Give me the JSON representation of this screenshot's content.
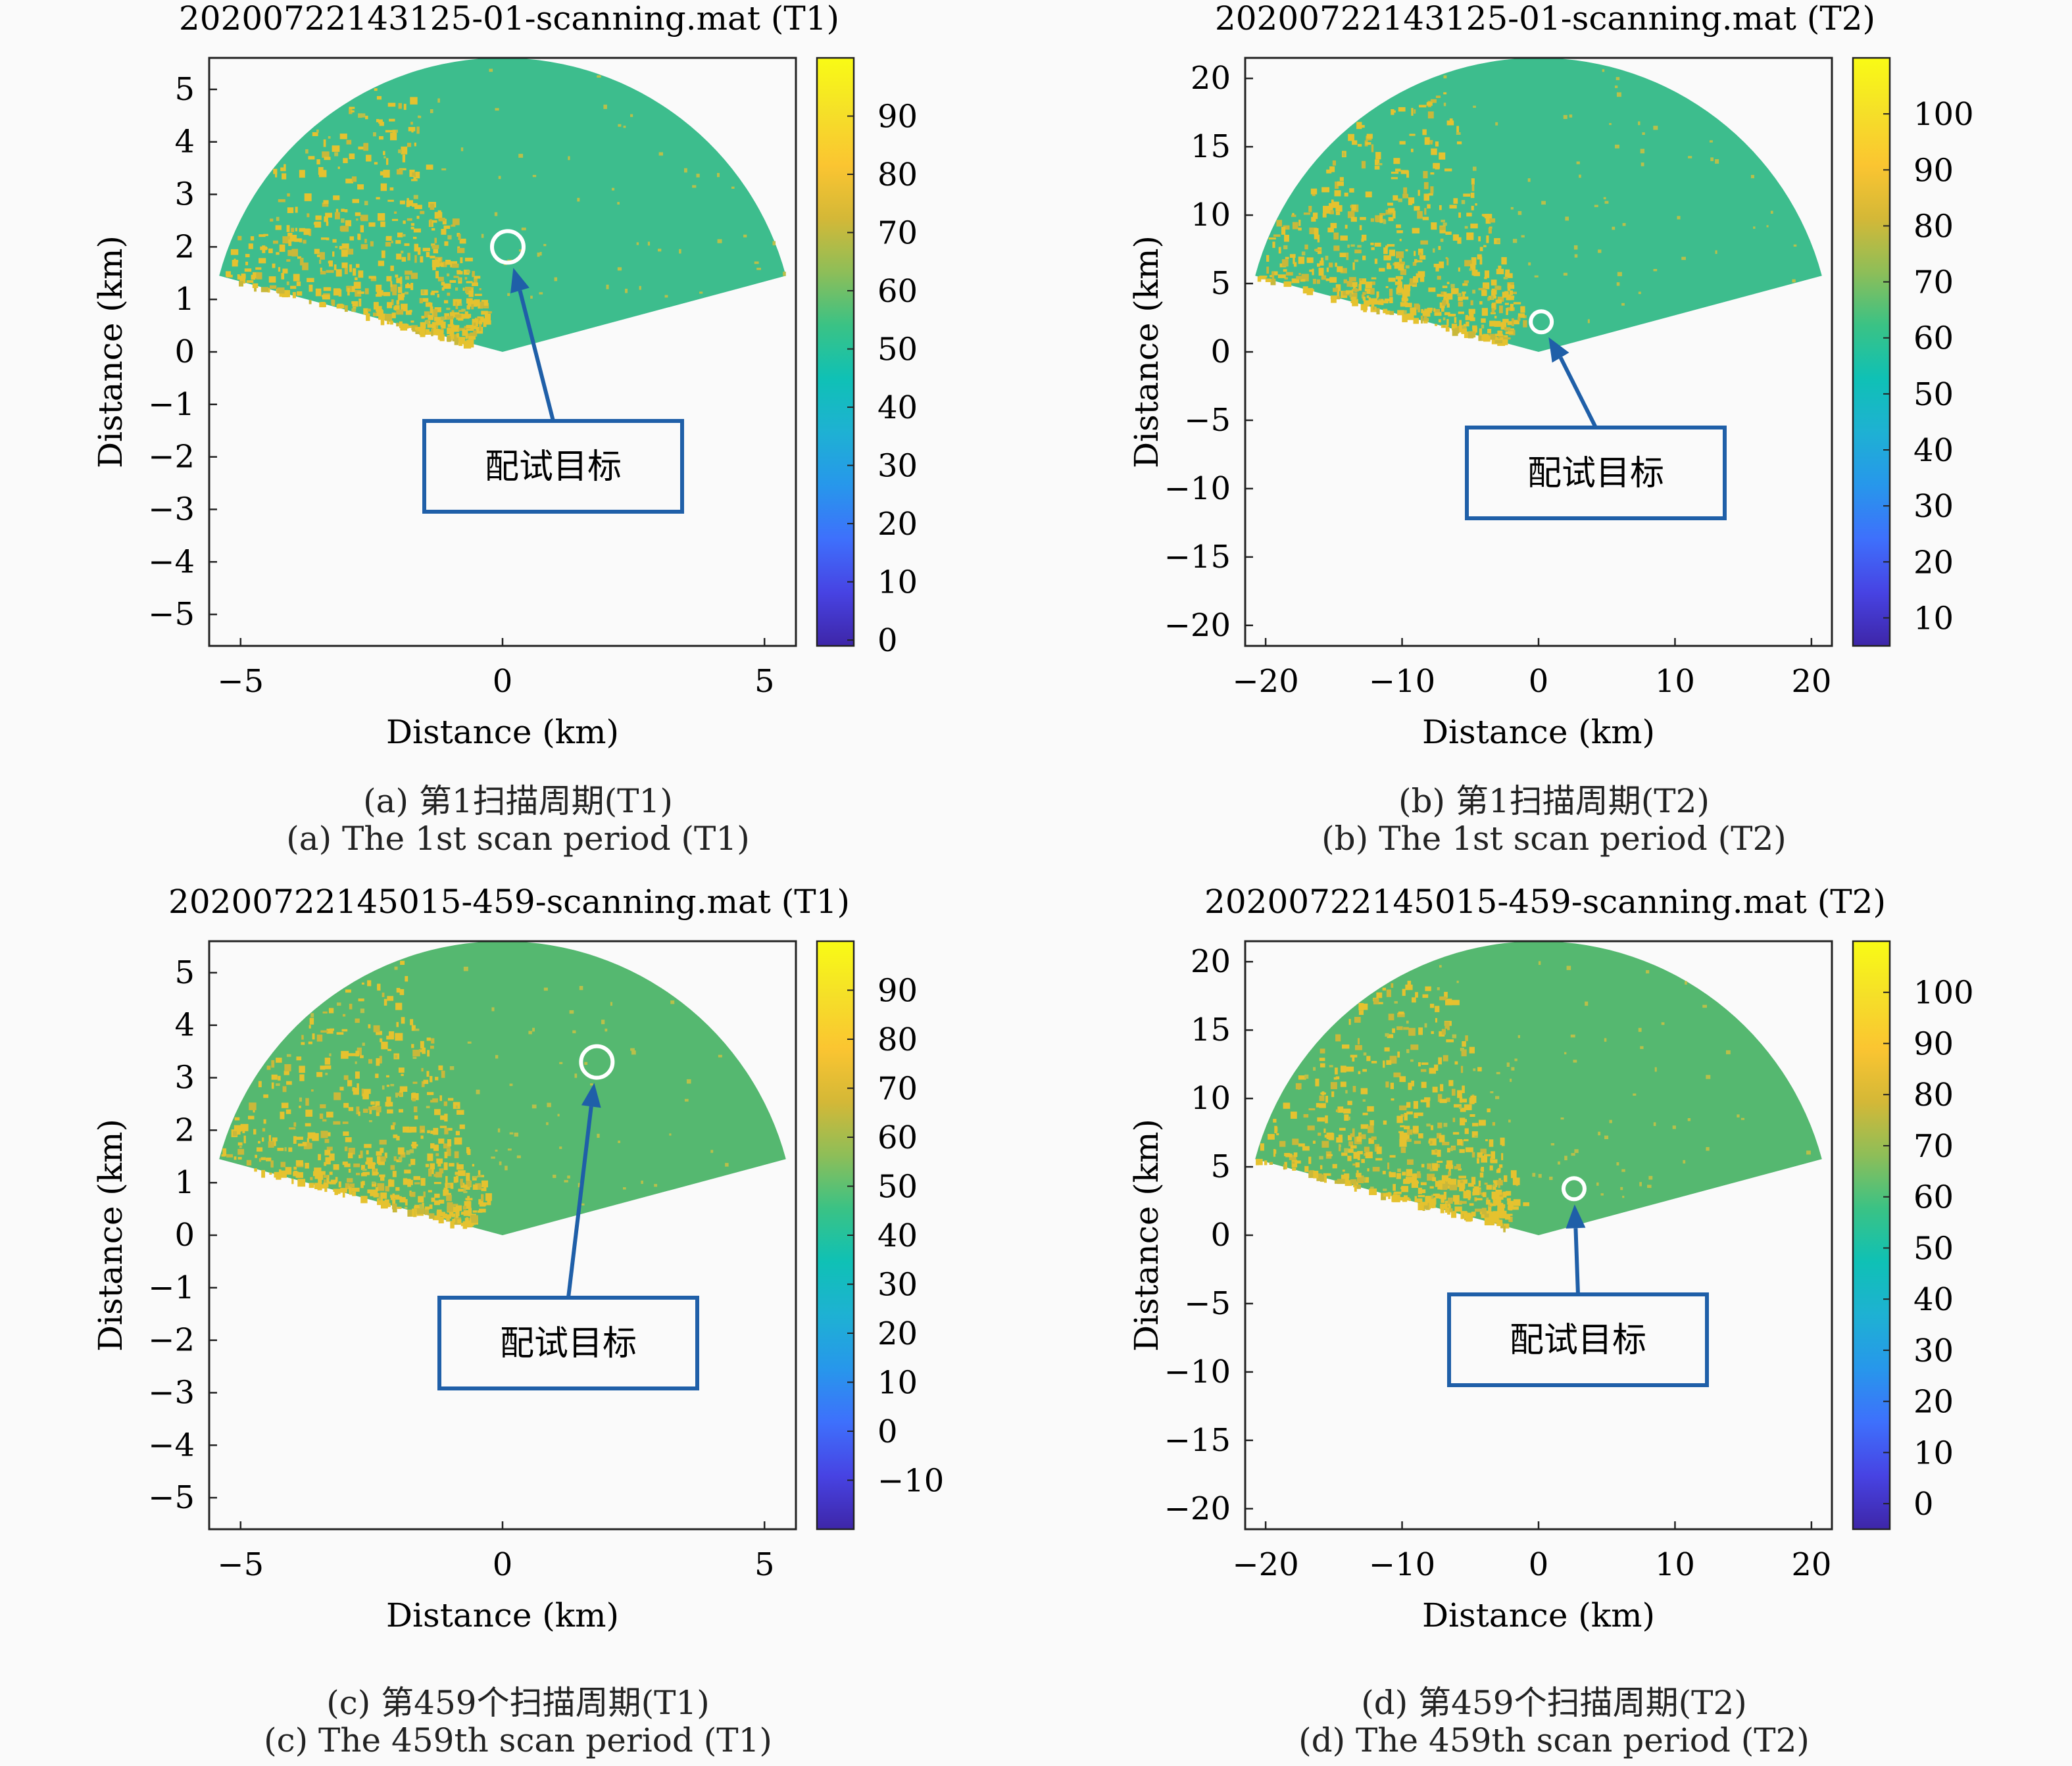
{
  "colors": {
    "background": "#fafafa",
    "sea": "#3dbd8d",
    "sea_dark": "#55b870",
    "clutter": "#e5c22f",
    "target_ring": "#ffffff",
    "annotation": "#1f5fa8"
  },
  "chart_data": [
    {
      "type": "heatmap",
      "id": "a",
      "title": "20200722143125-01-scanning.mat (T1)",
      "xlabel": "Distance (km)",
      "ylabel": "Distance (km)",
      "xlim": [
        -5.6,
        5.6
      ],
      "ylim": [
        -5.6,
        5.6
      ],
      "xticks": [
        -5,
        0,
        5
      ],
      "yticks": [
        5,
        4,
        3,
        2,
        1,
        0,
        -1,
        -2,
        -3,
        -4,
        -5
      ],
      "max_range": 5.6,
      "sector_deg": [
        15,
        165
      ],
      "colorbar": {
        "ticks": [
          90,
          80,
          70,
          60,
          50,
          40,
          30,
          20,
          10,
          0
        ],
        "min": -1,
        "max": 100
      },
      "target": {
        "x": 0.1,
        "y": 2.0
      },
      "annotation": "配试目标",
      "caption_cn": "(a) 第1扫描周期(T1)",
      "caption_en": "(a) The 1st scan period (T1)"
    },
    {
      "type": "heatmap",
      "id": "b",
      "title": "20200722143125-01-scanning.mat (T2)",
      "xlabel": "Distance (km)",
      "ylabel": "Distance (km)",
      "xlim": [
        -21.5,
        21.5
      ],
      "ylim": [
        -21.5,
        21.5
      ],
      "xticks": [
        -20,
        -10,
        0,
        10,
        20
      ],
      "yticks": [
        20,
        15,
        10,
        5,
        0,
        -5,
        -10,
        -15,
        -20
      ],
      "max_range": 21.5,
      "sector_deg": [
        15,
        165
      ],
      "colorbar": {
        "ticks": [
          100,
          90,
          80,
          70,
          60,
          50,
          40,
          30,
          20,
          10
        ],
        "min": 5,
        "max": 110
      },
      "target": {
        "x": 0.2,
        "y": 2.2
      },
      "annotation": "配试目标",
      "caption_cn": "(b) 第1扫描周期(T2)",
      "caption_en": "(b) The 1st scan period (T2)"
    },
    {
      "type": "heatmap",
      "id": "c",
      "title": "20200722145015-459-scanning.mat (T1)",
      "xlabel": "Distance (km)",
      "ylabel": "Distance (km)",
      "xlim": [
        -5.6,
        5.6
      ],
      "ylim": [
        -5.6,
        5.6
      ],
      "xticks": [
        -5,
        0,
        5
      ],
      "yticks": [
        5,
        4,
        3,
        2,
        1,
        0,
        -1,
        -2,
        -3,
        -4,
        -5
      ],
      "max_range": 5.6,
      "sector_deg": [
        15,
        165
      ],
      "colorbar": {
        "ticks": [
          90,
          80,
          70,
          60,
          50,
          40,
          30,
          20,
          10,
          0,
          -10
        ],
        "min": -20,
        "max": 100
      },
      "target": {
        "x": 1.8,
        "y": 3.3
      },
      "annotation": "配试目标",
      "caption_cn": "(c) 第459个扫描周期(T1)",
      "caption_en": "(c) The 459th scan period (T1)"
    },
    {
      "type": "heatmap",
      "id": "d",
      "title": "20200722145015-459-scanning.mat (T2)",
      "xlabel": "Distance (km)",
      "ylabel": "Distance (km)",
      "xlim": [
        -21.5,
        21.5
      ],
      "ylim": [
        -21.5,
        21.5
      ],
      "xticks": [
        -20,
        -10,
        0,
        10,
        20
      ],
      "yticks": [
        20,
        15,
        10,
        5,
        0,
        -5,
        -10,
        -15,
        -20
      ],
      "max_range": 21.5,
      "sector_deg": [
        15,
        165
      ],
      "colorbar": {
        "ticks": [
          100,
          90,
          80,
          70,
          60,
          50,
          40,
          30,
          20,
          10,
          0
        ],
        "min": -5,
        "max": 110
      },
      "target": {
        "x": 2.6,
        "y": 3.4
      },
      "annotation": "配试目标",
      "caption_cn": "(d) 第459个扫描周期(T2)",
      "caption_en": "(d) The 459th scan period (T2)"
    }
  ]
}
